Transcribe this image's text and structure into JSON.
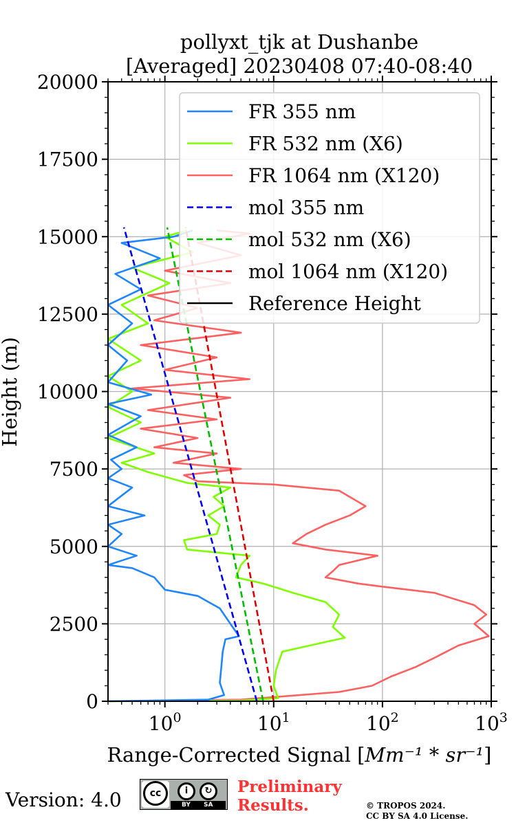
{
  "chart_data": {
    "type": "line",
    "title": [
      "pollyxt_tjk at Dushanbe",
      "[Averaged] 20230408 07:40-08:40"
    ],
    "xlabel_prefix": "Range-Corrected Signal [",
    "xlabel_units": "Mm⁻¹ * sr⁻¹",
    "xlabel_suffix": "]",
    "ylabel": "Height (m)",
    "xscale": "log",
    "xlim": [
      0.3,
      1000
    ],
    "ylim": [
      0,
      20000
    ],
    "grid": true,
    "legend_position": "top-right",
    "yticks": [
      "0",
      "2500",
      "5000",
      "7500",
      "10000",
      "12500",
      "15000",
      "17500",
      "20000"
    ],
    "xticks": [
      {
        "base": "10",
        "exp": "0",
        "value": 1
      },
      {
        "base": "10",
        "exp": "1",
        "value": 10
      },
      {
        "base": "10",
        "exp": "2",
        "value": 100
      },
      {
        "base": "10",
        "exp": "3",
        "value": 1000
      }
    ],
    "series": [
      {
        "name": "FR 355 nm",
        "color": "#1f86ff",
        "style": "solid",
        "points": [
          [
            0.3,
            0
          ],
          [
            2.5,
            50
          ],
          [
            3.5,
            200
          ],
          [
            3.2,
            600
          ],
          [
            3.3,
            1100
          ],
          [
            3.4,
            1600
          ],
          [
            3.6,
            2000
          ],
          [
            4.8,
            2100
          ],
          [
            4.0,
            2500
          ],
          [
            3.2,
            3000
          ],
          [
            2.0,
            3400
          ],
          [
            1.0,
            3600
          ],
          [
            0.8,
            4000
          ],
          [
            0.5,
            4300
          ],
          [
            0.3,
            4400
          ],
          [
            0.55,
            4700
          ],
          [
            0.3,
            5000
          ],
          [
            0.4,
            5400
          ],
          [
            0.3,
            5700
          ],
          [
            0.65,
            6000
          ],
          [
            0.3,
            6300
          ],
          [
            0.5,
            6900
          ],
          [
            0.3,
            7200
          ],
          [
            0.4,
            7500
          ],
          [
            0.32,
            7800
          ],
          [
            0.55,
            8200
          ],
          [
            0.3,
            8600
          ],
          [
            0.6,
            9200
          ],
          [
            0.3,
            9600
          ],
          [
            0.75,
            9900
          ],
          [
            0.3,
            10300
          ],
          [
            0.45,
            11000
          ],
          [
            0.3,
            11500
          ],
          [
            0.5,
            12200
          ],
          [
            0.3,
            12800
          ],
          [
            0.6,
            13300
          ],
          [
            0.35,
            13800
          ],
          [
            0.9,
            14300
          ],
          [
            0.4,
            14800
          ],
          [
            1.2,
            15000
          ],
          [
            1.8,
            15200
          ]
        ]
      },
      {
        "name": "FR 532 nm (X6)",
        "color": "#80ff00",
        "style": "solid",
        "points": [
          [
            0.3,
            0
          ],
          [
            5,
            20
          ],
          [
            11,
            100
          ],
          [
            10,
            500
          ],
          [
            10.5,
            1000
          ],
          [
            12,
            1600
          ],
          [
            45,
            2050
          ],
          [
            35,
            2400
          ],
          [
            40,
            2800
          ],
          [
            30,
            3200
          ],
          [
            15,
            3500
          ],
          [
            8,
            3800
          ],
          [
            4.5,
            4000
          ],
          [
            5,
            4400
          ],
          [
            6,
            4700
          ],
          [
            1.6,
            4900
          ],
          [
            1.5,
            5200
          ],
          [
            3,
            5400
          ],
          [
            3.2,
            5700
          ],
          [
            2.5,
            6000
          ],
          [
            3.5,
            6300
          ],
          [
            2.8,
            6600
          ],
          [
            4,
            6900
          ],
          [
            1.6,
            7050
          ],
          [
            0.7,
            7400
          ],
          [
            0.4,
            7700
          ],
          [
            0.8,
            8000
          ],
          [
            0.3,
            8500
          ],
          [
            0.6,
            9000
          ],
          [
            0.3,
            9500
          ],
          [
            0.5,
            10000
          ],
          [
            0.3,
            10500
          ],
          [
            0.6,
            11000
          ],
          [
            0.3,
            11700
          ],
          [
            0.7,
            12200
          ],
          [
            0.4,
            12800
          ],
          [
            1.1,
            13500
          ],
          [
            0.5,
            14000
          ],
          [
            1.8,
            14500
          ],
          [
            1.0,
            15000
          ],
          [
            1.6,
            15200
          ]
        ]
      },
      {
        "name": "FR 1064 nm (X120)",
        "color": "#ff6060",
        "style": "solid",
        "points": [
          [
            0.3,
            0
          ],
          [
            5,
            50
          ],
          [
            40,
            300
          ],
          [
            80,
            500
          ],
          [
            120,
            800
          ],
          [
            200,
            1100
          ],
          [
            300,
            1400
          ],
          [
            500,
            1800
          ],
          [
            950,
            2100
          ],
          [
            700,
            2500
          ],
          [
            900,
            2800
          ],
          [
            700,
            3100
          ],
          [
            300,
            3500
          ],
          [
            100,
            3700
          ],
          [
            60,
            3800
          ],
          [
            30,
            4000
          ],
          [
            35,
            4200
          ],
          [
            40,
            4400
          ],
          [
            90,
            4700
          ],
          [
            30,
            4900
          ],
          [
            15,
            5100
          ],
          [
            20,
            5400
          ],
          [
            30,
            5700
          ],
          [
            50,
            6000
          ],
          [
            70,
            6300
          ],
          [
            50,
            6600
          ],
          [
            40,
            6800
          ],
          [
            10,
            7000
          ],
          [
            2,
            7100
          ],
          [
            1.5,
            7300
          ],
          [
            5,
            7500
          ],
          [
            1.2,
            7700
          ],
          [
            3,
            8000
          ],
          [
            0.8,
            8200
          ],
          [
            2,
            8500
          ],
          [
            0.6,
            8800
          ],
          [
            3,
            9100
          ],
          [
            0.7,
            9400
          ],
          [
            4,
            9800
          ],
          [
            0.5,
            10100
          ],
          [
            6,
            10400
          ],
          [
            1,
            10700
          ],
          [
            3,
            11100
          ],
          [
            0.6,
            11500
          ],
          [
            5,
            11900
          ],
          [
            0.8,
            12300
          ],
          [
            2,
            12700
          ],
          [
            0.7,
            13100
          ],
          [
            4,
            13500
          ],
          [
            1,
            13900
          ],
          [
            5,
            14400
          ],
          [
            2,
            14800
          ],
          [
            6,
            15100
          ],
          [
            3,
            15200
          ]
        ]
      },
      {
        "name": "mol 355 nm",
        "color": "#0000ee",
        "style": "dashed",
        "points": [
          [
            7.0,
            0
          ],
          [
            0.42,
            15300
          ]
        ]
      },
      {
        "name": "mol 532 nm (X6)",
        "color": "#00bb00",
        "style": "dashed",
        "points": [
          [
            8.0,
            0
          ],
          [
            1.05,
            15300
          ]
        ]
      },
      {
        "name": "mol 1064 nm (X120)",
        "color": "#dd0000",
        "style": "dashed",
        "points": [
          [
            10.0,
            0
          ],
          [
            1.55,
            15300
          ]
        ]
      },
      {
        "name": "Reference Height",
        "color": "#000000",
        "style": "solid",
        "points": []
      }
    ]
  },
  "footer": {
    "version": "Version: 4.0",
    "license_badge": {
      "icon": "cc-by-sa-icon",
      "cc": "cc",
      "by": "BY",
      "sa": "SA"
    },
    "preliminary": [
      "Preliminary",
      "Results."
    ],
    "copyright": [
      "© TROPOS 2024.",
      "CC BY SA 4.0 License."
    ]
  }
}
